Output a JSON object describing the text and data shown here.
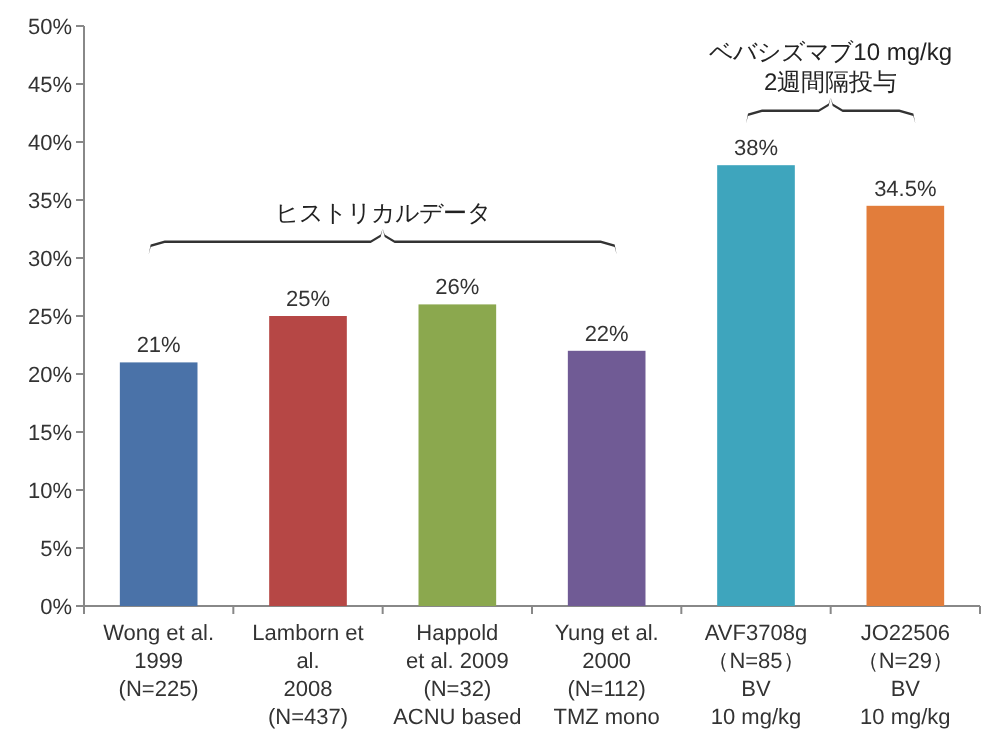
{
  "chart_data": {
    "type": "bar",
    "categories": [
      "Wong et al.\n1999\n(N=225)",
      "Lamborn et\nal.\n2008\n(N=437)",
      "Happold\net al. 2009\n(N=32)\nACNU based",
      "Yung et al.\n2000\n(N=112)\nTMZ mono",
      "AVF3708g\n（N=85）\nBV\n10 mg/kg",
      "JO22506\n（N=29）\nBV\n10 mg/kg"
    ],
    "values": [
      21,
      25,
      26,
      22,
      38,
      34.5
    ],
    "colors": [
      "#4a72a8",
      "#b64745",
      "#8ba84e",
      "#705b95",
      "#3ea5bd",
      "#e27d3b"
    ],
    "value_labels": [
      "21%",
      "25%",
      "26%",
      "22%",
      "38%",
      "34.5%"
    ],
    "ylim": [
      0,
      50
    ],
    "yticks": [
      {
        "value": 0,
        "label": "0%"
      },
      {
        "value": 5,
        "label": "5%"
      },
      {
        "value": 10,
        "label": "10%"
      },
      {
        "value": 15,
        "label": "15%"
      },
      {
        "value": 20,
        "label": "20%"
      },
      {
        "value": 25,
        "label": "25%"
      },
      {
        "value": 30,
        "label": "30%"
      },
      {
        "value": 35,
        "label": "35%"
      },
      {
        "value": 40,
        "label": "40%"
      },
      {
        "value": 45,
        "label": "45%"
      },
      {
        "value": 50,
        "label": "50%"
      }
    ],
    "annotations": [
      "ヒストリカルデータ",
      "ベバシズマブ10 mg/kg\n2週間隔投与"
    ],
    "grid": false
  }
}
